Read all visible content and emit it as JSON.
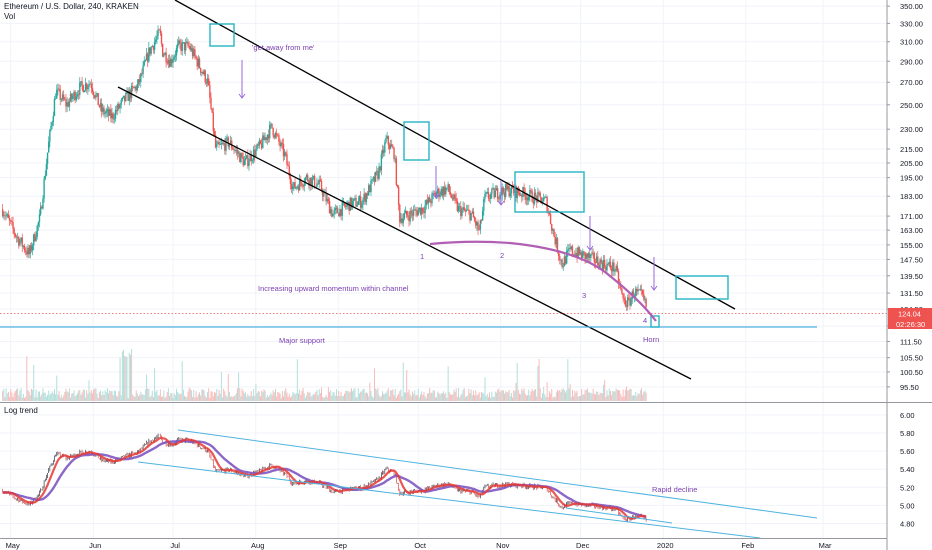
{
  "header": {
    "title": "Ethereum / U.S. Dollar, 240, KRAKEN",
    "volume_label": "Vol",
    "lower_pane_title": "Log trend"
  },
  "colors": {
    "up": "#26a69a",
    "down": "#ef5350",
    "channel": "#000000",
    "box": "#26b5c4",
    "support": "#4fb3e0",
    "arc": "#b05fb4",
    "annotation": "#7b3fb0",
    "price_tag": "#ef5350",
    "trend_red": "#e53935",
    "trend_purple": "#7e57c2",
    "trend_lines": "#4fb3e0"
  },
  "chart_data": [
    {
      "type": "candlestick",
      "title": "Ethereum / U.S. Dollar, 240, KRAKEN",
      "y_scale": "log",
      "ylim": [
        91,
        355
      ],
      "y_ticks": [
        95.5,
        100.5,
        105.5,
        111.5,
        117.5,
        124.5,
        131.5,
        139.5,
        147.5,
        155.0,
        163.0,
        171.0,
        183.0,
        195.0,
        205.0,
        215.0,
        230.0,
        250.0,
        270.0,
        290.0,
        310.0,
        330.0,
        350.0
      ],
      "y_tick_labels": [
        "95.50",
        "100.50",
        "105.50",
        "111.50",
        "117.50",
        "124.50",
        "131.50",
        "139.50",
        "147.50",
        "155.00",
        "163.00",
        "171.00",
        "183.00",
        "195.00",
        "205.00",
        "215.00",
        "230.00",
        "250.00",
        "270.00",
        "290.00",
        "310.00",
        "330.00",
        "350.00"
      ],
      "x_tick_labels": [
        "May",
        "Jun",
        "Jul",
        "Aug",
        "Sep",
        "Oct",
        "Nov",
        "Dec",
        "2020",
        "Feb",
        "Mar"
      ],
      "x_range": [
        "2019-04-27",
        "2020-03-25"
      ],
      "grid": true,
      "last_price": "124.04",
      "countdown": "02:26:30",
      "price_path": [
        [
          "2019-04-28",
          175
        ],
        [
          "2019-05-03",
          160
        ],
        [
          "2019-05-08",
          150
        ],
        [
          "2019-05-12",
          170
        ],
        [
          "2019-05-15",
          215
        ],
        [
          "2019-05-18",
          262
        ],
        [
          "2019-05-22",
          250
        ],
        [
          "2019-05-27",
          265
        ],
        [
          "2019-05-31",
          270
        ],
        [
          "2019-06-04",
          245
        ],
        [
          "2019-06-08",
          240
        ],
        [
          "2019-06-13",
          255
        ],
        [
          "2019-06-18",
          268
        ],
        [
          "2019-06-22",
          300
        ],
        [
          "2019-06-26",
          320
        ],
        [
          "2019-06-27",
          300
        ],
        [
          "2019-06-30",
          290
        ],
        [
          "2019-07-03",
          305
        ],
        [
          "2019-07-07",
          305
        ],
        [
          "2019-07-10",
          290
        ],
        [
          "2019-07-14",
          270
        ],
        [
          "2019-07-17",
          215
        ],
        [
          "2019-07-22",
          220
        ],
        [
          "2019-07-28",
          205
        ],
        [
          "2019-08-03",
          218
        ],
        [
          "2019-08-07",
          232
        ],
        [
          "2019-08-12",
          210
        ],
        [
          "2019-08-15",
          188
        ],
        [
          "2019-08-20",
          195
        ],
        [
          "2019-08-25",
          190
        ],
        [
          "2019-08-30",
          172
        ],
        [
          "2019-09-05",
          178
        ],
        [
          "2019-09-10",
          180
        ],
        [
          "2019-09-16",
          198
        ],
        [
          "2019-09-19",
          222
        ],
        [
          "2019-09-22",
          212
        ],
        [
          "2019-09-24",
          170
        ],
        [
          "2019-09-28",
          172
        ],
        [
          "2019-10-03",
          176
        ],
        [
          "2019-10-08",
          185
        ],
        [
          "2019-10-12",
          188
        ],
        [
          "2019-10-16",
          175
        ],
        [
          "2019-10-21",
          172
        ],
        [
          "2019-10-24",
          162
        ],
        [
          "2019-10-26",
          182
        ],
        [
          "2019-10-30",
          185
        ],
        [
          "2019-11-04",
          187
        ],
        [
          "2019-11-09",
          185
        ],
        [
          "2019-11-14",
          182
        ],
        [
          "2019-11-18",
          180
        ],
        [
          "2019-11-21",
          160
        ],
        [
          "2019-11-24",
          145
        ],
        [
          "2019-11-27",
          152
        ],
        [
          "2019-12-01",
          150
        ],
        [
          "2019-12-05",
          148
        ],
        [
          "2019-12-10",
          145
        ],
        [
          "2019-12-14",
          143
        ],
        [
          "2019-12-17",
          128
        ],
        [
          "2019-12-19",
          127
        ],
        [
          "2019-12-21",
          132
        ],
        [
          "2019-12-24",
          130
        ],
        [
          "2019-12-26",
          124
        ]
      ]
    },
    {
      "type": "line",
      "title": "Log trend",
      "ylim": [
        4.64,
        6.12
      ],
      "y_ticks": [
        4.8,
        5.0,
        5.2,
        5.4,
        5.6,
        5.8,
        6.0
      ],
      "y_tick_labels": [
        "4.80",
        "5.00",
        "5.20",
        "5.40",
        "5.60",
        "5.80",
        "6.00"
      ],
      "x_range": [
        "2019-04-27",
        "2020-03-25"
      ]
    }
  ],
  "annotations": {
    "get_away": "'get away from me'",
    "momentum": "Increasing upward momentum within channel",
    "support": "Major support",
    "horn": "Horn",
    "rapid": "Rapid decline",
    "n1": "1",
    "n2": "2",
    "n3": "3",
    "n4": "4"
  }
}
